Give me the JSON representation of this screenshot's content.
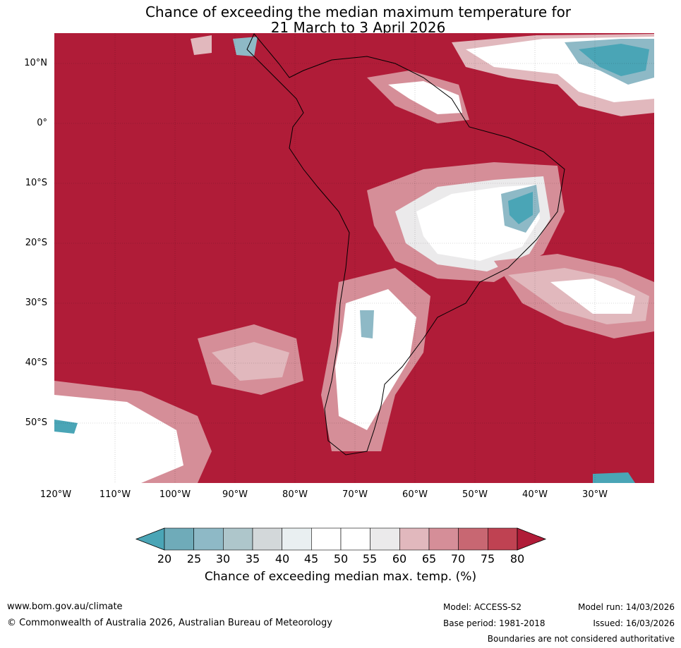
{
  "title": {
    "line1": "Chance of exceeding the median maximum temperature for",
    "line2": "21 March to 3 April 2026"
  },
  "map": {
    "lat_labels": [
      "10°N",
      "0°",
      "10°S",
      "20°S",
      "30°S",
      "40°S",
      "50°S"
    ],
    "lon_labels": [
      "120°W",
      "110°W",
      "100°W",
      "90°W",
      "80°W",
      "70°W",
      "60°W",
      "50°W",
      "40°W",
      "30°W"
    ],
    "ocean_color": "#b01c38",
    "region": "South America"
  },
  "colorbar": {
    "ticks": [
      "20",
      "25",
      "30",
      "35",
      "40",
      "45",
      "50",
      "55",
      "60",
      "65",
      "70",
      "75",
      "80"
    ],
    "colors": [
      "#4aa5b6",
      "#6fabb9",
      "#8eb9c6",
      "#aec6cb",
      "#d3d8da",
      "#e9eff1",
      "#ffffff",
      "#ffffff",
      "#ebeaeb",
      "#e1b8bd",
      "#d58e98",
      "#c86772",
      "#bf4252",
      "#b01c38"
    ],
    "label": "Chance of exceeding median max. temp. (%)"
  },
  "footer": {
    "website": "www.bom.gov.au/climate",
    "copyright": "© Commonwealth of Australia 2026, Australian Bureau of Meteorology",
    "model": "Model: ACCESS-S2",
    "base_period": "Base period: 1981-2018",
    "model_run": "Model run: 14/03/2026",
    "issued": "Issued: 16/03/2026",
    "disclaimer": "Boundaries are not considered authoritative"
  }
}
